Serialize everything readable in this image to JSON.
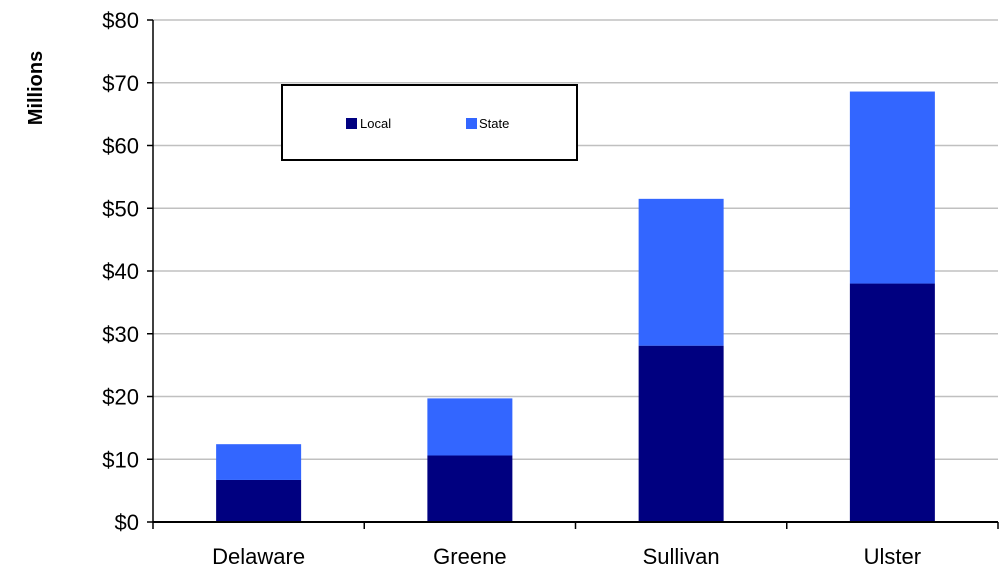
{
  "chart_data": {
    "type": "bar",
    "stacked": true,
    "categories": [
      "Delaware",
      "Greene",
      "Sullivan",
      "Ulster"
    ],
    "series": [
      {
        "name": "Local",
        "values": [
          6.7,
          10.6,
          28.1,
          38.0
        ]
      },
      {
        "name": "State",
        "values": [
          5.7,
          9.1,
          23.4,
          30.6
        ]
      }
    ],
    "title": "",
    "xlabel": "",
    "ylabel": "Millions",
    "ylim": [
      0,
      80
    ],
    "yticks": [
      0,
      10,
      20,
      30,
      40,
      50,
      60,
      70,
      80
    ],
    "ytick_labels": [
      "$0",
      "$10",
      "$20",
      "$30",
      "$40",
      "$50",
      "$60",
      "$70",
      "$80"
    ],
    "grid": true,
    "legend": "top-left",
    "colors": {
      "Local": "#000080",
      "State": "#3366ff"
    }
  }
}
